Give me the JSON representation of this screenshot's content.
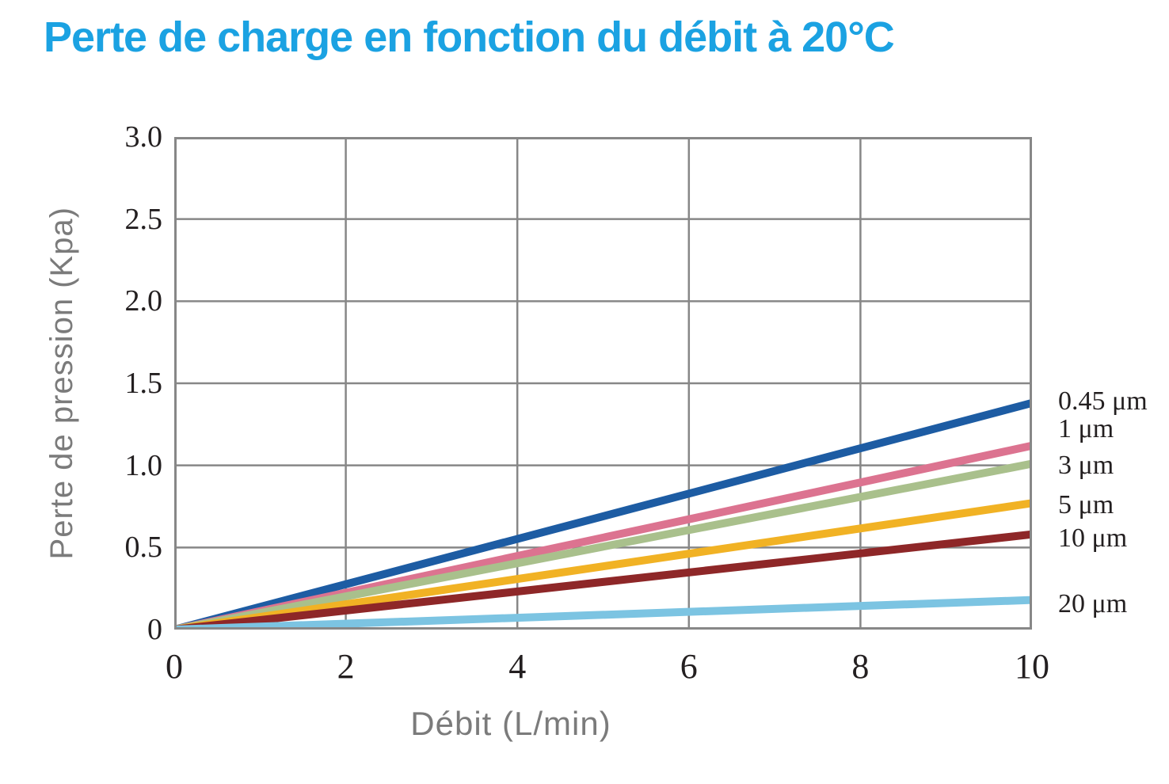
{
  "chart_data": {
    "type": "line",
    "title": "Perte de charge en fonction du débit à 20°C",
    "title_color": "#1ba2e2",
    "xlabel": "Débit (L/min)",
    "ylabel": "Perte de pression (Kpa)",
    "xlim": [
      0,
      10
    ],
    "ylim": [
      0,
      3
    ],
    "grid": true,
    "grid_color": "#878787",
    "tick_color": "#231f20",
    "axis_label_color": "#7b7b7b",
    "legend_position": "right",
    "x_ticks": [
      {
        "label": "0",
        "value": 0
      },
      {
        "label": "2",
        "value": 2
      },
      {
        "label": "4",
        "value": 4
      },
      {
        "label": "6",
        "value": 6
      },
      {
        "label": "8",
        "value": 8
      },
      {
        "label": "10",
        "value": 10
      }
    ],
    "y_ticks": [
      {
        "label": "3.0",
        "value": 3
      },
      {
        "label": "2.5",
        "value": 2.5
      },
      {
        "label": "2.0",
        "value": 2
      },
      {
        "label": "1.5",
        "value": 1.5
      },
      {
        "label": "1.0",
        "value": 1
      },
      {
        "label": "0.5",
        "value": 0.5
      },
      {
        "label": "0",
        "value": 0
      }
    ],
    "series": [
      {
        "name": "0.45 μm",
        "color": "#1d5ca3",
        "x": [
          0,
          10
        ],
        "y": [
          0,
          1.38
        ]
      },
      {
        "name": "1 μm",
        "color": "#dc7390",
        "x": [
          0,
          10
        ],
        "y": [
          0,
          1.12
        ]
      },
      {
        "name": "3 μm",
        "color": "#a9c08c",
        "x": [
          0,
          10
        ],
        "y": [
          0,
          1.01
        ]
      },
      {
        "name": "5 μm",
        "color": "#f1b224",
        "x": [
          0,
          10
        ],
        "y": [
          0,
          0.77
        ]
      },
      {
        "name": "10 μm",
        "color": "#8e2728",
        "x": [
          0,
          10
        ],
        "y": [
          0,
          0.58
        ]
      },
      {
        "name": "20 μm",
        "color": "#7cc4e2",
        "x": [
          0,
          10
        ],
        "y": [
          0,
          0.18
        ]
      }
    ]
  }
}
